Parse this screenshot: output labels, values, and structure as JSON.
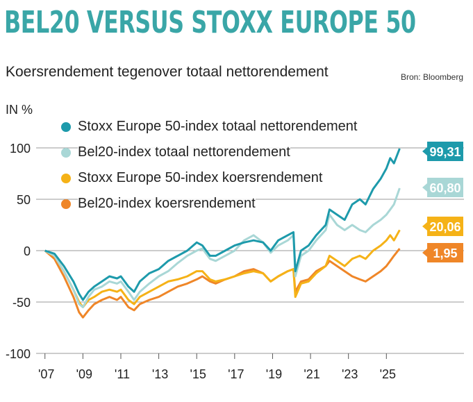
{
  "header": {
    "title": "BEL20 VERSUS STOXX EUROPE 50",
    "subtitle": "Koersrendement tegenover totaal nettorendement",
    "source": "Bron: Bloomberg",
    "unit": "IN %"
  },
  "colors": {
    "title": "#3aa6a7",
    "stoxx_total": "#1d9aab",
    "bel20_total": "#a9d7d6",
    "stoxx_price": "#f5b217",
    "bel20_price": "#ef8628",
    "grid": "#9a9a9a"
  },
  "chart_data": {
    "type": "line",
    "title": "BEL20 VERSUS STOXX EUROPE 50",
    "subtitle": "Koersrendement tegenover totaal nettorendement",
    "ylabel": "IN %",
    "ylim": [
      -100,
      100
    ],
    "yticks": [
      "100",
      "50",
      "0",
      "-50",
      "-100"
    ],
    "ytick_values": [
      100,
      50,
      0,
      -50,
      -100
    ],
    "xlim": [
      2006.9,
      2026.6
    ],
    "xticks": [
      "'07",
      "'09",
      "'11",
      "'13",
      "'15",
      "'17",
      "'19",
      "'21",
      "'23",
      "'25"
    ],
    "xtick_values": [
      2007,
      2009,
      2011,
      2013,
      2015,
      2017,
      2019,
      2021,
      2023,
      2025
    ],
    "grid": true,
    "legend_placement": "top-left",
    "series": [
      {
        "name": "Stoxx Europe 50-index totaal nettorendement",
        "color_key": "stoxx_total",
        "end_label": "99,31",
        "x": [
          2007.0,
          2007.5,
          2008.0,
          2008.5,
          2008.8,
          2009.0,
          2009.3,
          2009.6,
          2010.0,
          2010.4,
          2010.8,
          2011.0,
          2011.4,
          2011.7,
          2012.0,
          2012.5,
          2013.0,
          2013.5,
          2014.0,
          2014.5,
          2015.0,
          2015.3,
          2015.7,
          2016.0,
          2016.5,
          2017.0,
          2017.5,
          2018.0,
          2018.5,
          2018.9,
          2019.3,
          2019.8,
          2020.1,
          2020.2,
          2020.5,
          2020.9,
          2021.3,
          2021.8,
          2022.0,
          2022.4,
          2022.8,
          2023.2,
          2023.6,
          2023.9,
          2024.3,
          2024.7,
          2025.0,
          2025.2,
          2025.4,
          2025.7
        ],
        "values": [
          0,
          -3,
          -15,
          -30,
          -42,
          -48,
          -40,
          -35,
          -30,
          -25,
          -27,
          -25,
          -35,
          -40,
          -30,
          -22,
          -18,
          -10,
          -5,
          0,
          8,
          5,
          -5,
          -5,
          0,
          5,
          8,
          10,
          8,
          0,
          10,
          15,
          18,
          -20,
          0,
          5,
          15,
          25,
          40,
          35,
          30,
          45,
          50,
          45,
          60,
          70,
          80,
          90,
          85,
          99.31
        ]
      },
      {
        "name": "Bel20-index totaal nettorendement",
        "color_key": "bel20_total",
        "end_label": "60,80",
        "x": [
          2007.0,
          2007.5,
          2008.0,
          2008.5,
          2008.8,
          2009.0,
          2009.3,
          2009.6,
          2010.0,
          2010.4,
          2010.8,
          2011.0,
          2011.4,
          2011.7,
          2012.0,
          2012.5,
          2013.0,
          2013.5,
          2014.0,
          2014.5,
          2015.0,
          2015.3,
          2015.7,
          2016.0,
          2016.5,
          2017.0,
          2017.5,
          2018.0,
          2018.5,
          2018.9,
          2019.3,
          2019.8,
          2020.1,
          2020.2,
          2020.5,
          2020.9,
          2021.3,
          2021.8,
          2022.0,
          2022.4,
          2022.8,
          2023.2,
          2023.6,
          2023.9,
          2024.3,
          2024.7,
          2025.0,
          2025.2,
          2025.4,
          2025.7
        ],
        "values": [
          0,
          -5,
          -20,
          -38,
          -52,
          -55,
          -45,
          -38,
          -35,
          -30,
          -32,
          -30,
          -40,
          -48,
          -40,
          -32,
          -25,
          -20,
          -12,
          -5,
          0,
          2,
          -8,
          -10,
          -5,
          0,
          10,
          15,
          8,
          -2,
          5,
          10,
          15,
          -25,
          -5,
          0,
          10,
          20,
          35,
          25,
          20,
          25,
          20,
          18,
          25,
          30,
          35,
          40,
          45,
          60.8
        ]
      },
      {
        "name": "Stoxx Europe 50-index koersrendement",
        "color_key": "stoxx_price",
        "end_label": "20,06",
        "x": [
          2007.0,
          2007.5,
          2008.0,
          2008.5,
          2008.8,
          2009.0,
          2009.3,
          2009.6,
          2010.0,
          2010.4,
          2010.8,
          2011.0,
          2011.4,
          2011.7,
          2012.0,
          2012.5,
          2013.0,
          2013.5,
          2014.0,
          2014.5,
          2015.0,
          2015.3,
          2015.7,
          2016.0,
          2016.5,
          2017.0,
          2017.5,
          2018.0,
          2018.5,
          2018.9,
          2019.3,
          2019.8,
          2020.1,
          2020.2,
          2020.5,
          2020.9,
          2021.3,
          2021.8,
          2022.0,
          2022.4,
          2022.8,
          2023.2,
          2023.6,
          2023.9,
          2024.3,
          2024.7,
          2025.0,
          2025.2,
          2025.4,
          2025.7
        ],
        "values": [
          0,
          -5,
          -20,
          -38,
          -50,
          -55,
          -48,
          -45,
          -40,
          -38,
          -40,
          -38,
          -48,
          -52,
          -45,
          -40,
          -35,
          -30,
          -28,
          -25,
          -20,
          -20,
          -28,
          -30,
          -28,
          -25,
          -22,
          -20,
          -22,
          -30,
          -25,
          -20,
          -18,
          -45,
          -32,
          -30,
          -22,
          -15,
          -5,
          -10,
          -15,
          -8,
          -5,
          -8,
          0,
          5,
          10,
          15,
          10,
          20.06
        ]
      },
      {
        "name": "Bel20-index koersrendement",
        "color_key": "bel20_price",
        "end_label": "1,95",
        "x": [
          2007.0,
          2007.5,
          2008.0,
          2008.5,
          2008.8,
          2009.0,
          2009.3,
          2009.6,
          2010.0,
          2010.4,
          2010.8,
          2011.0,
          2011.4,
          2011.7,
          2012.0,
          2012.5,
          2013.0,
          2013.5,
          2014.0,
          2014.5,
          2015.0,
          2015.3,
          2015.7,
          2016.0,
          2016.5,
          2017.0,
          2017.5,
          2018.0,
          2018.5,
          2018.9,
          2019.3,
          2019.8,
          2020.1,
          2020.2,
          2020.5,
          2020.9,
          2021.3,
          2021.8,
          2022.0,
          2022.4,
          2022.8,
          2023.2,
          2023.6,
          2023.9,
          2024.3,
          2024.7,
          2025.0,
          2025.2,
          2025.4,
          2025.7
        ],
        "values": [
          0,
          -8,
          -25,
          -45,
          -60,
          -65,
          -58,
          -52,
          -48,
          -45,
          -48,
          -45,
          -55,
          -58,
          -52,
          -48,
          -45,
          -40,
          -35,
          -32,
          -28,
          -25,
          -30,
          -32,
          -28,
          -25,
          -20,
          -18,
          -22,
          -30,
          -25,
          -20,
          -18,
          -40,
          -30,
          -28,
          -20,
          -15,
          -10,
          -15,
          -20,
          -25,
          -28,
          -30,
          -25,
          -20,
          -15,
          -10,
          -5,
          1.95
        ]
      }
    ]
  }
}
